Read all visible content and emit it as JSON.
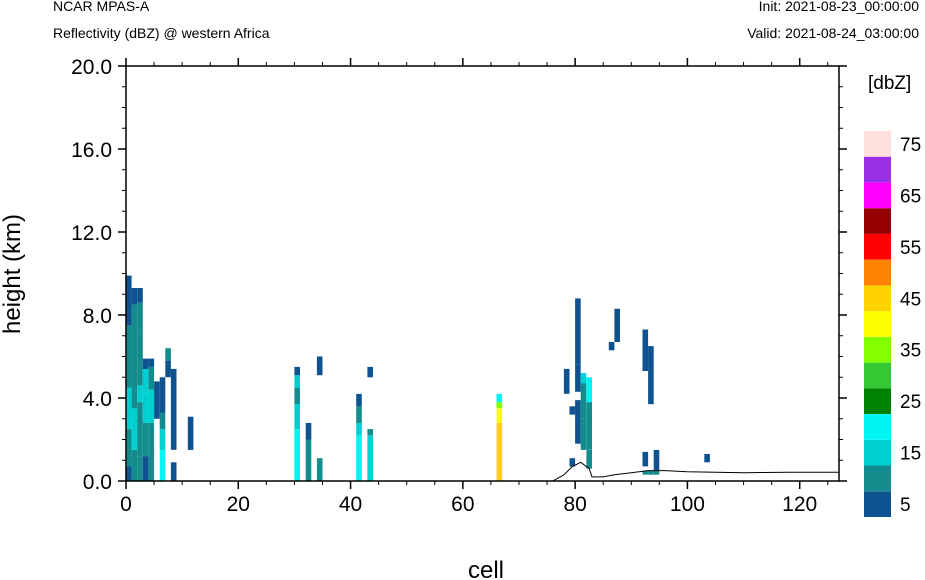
{
  "header": {
    "model": "NCAR MPAS-A",
    "field": "Reflectivity (dBZ) @ western Africa",
    "init": "Init: 2021-08-23_00:00:00",
    "valid": "Valid: 2021-08-24_03:00:00"
  },
  "chart_data": {
    "type": "heatmap",
    "title": "",
    "xlabel": "cell",
    "ylabel": "height (km)",
    "xlim": [
      0,
      127
    ],
    "ylim": [
      0,
      20
    ],
    "x_ticks": [
      "0",
      "20",
      "40",
      "60",
      "80",
      "100",
      "120"
    ],
    "y_ticks": [
      "0.0",
      "4.0",
      "8.0",
      "12.0",
      "16.0",
      "20.0"
    ],
    "grid": false,
    "colorbar": {
      "title": "[dbZ]",
      "labels": [
        "5",
        "15",
        "25",
        "35",
        "45",
        "55",
        "65",
        "75"
      ],
      "bins": [
        {
          "value": 5,
          "color": "#0e5290"
        },
        {
          "value": 10,
          "color": "#128c8c"
        },
        {
          "value": 15,
          "color": "#00cfd2"
        },
        {
          "value": 20,
          "color": "#00f4f4"
        },
        {
          "value": 25,
          "color": "#008200"
        },
        {
          "value": 30,
          "color": "#34c934"
        },
        {
          "value": 35,
          "color": "#84ff00"
        },
        {
          "value": 40,
          "color": "#ffff00"
        },
        {
          "value": 45,
          "color": "#ffd200"
        },
        {
          "value": 50,
          "color": "#ff8200"
        },
        {
          "value": 55,
          "color": "#ff0000"
        },
        {
          "value": 60,
          "color": "#960000"
        },
        {
          "value": 65,
          "color": "#ff00ff"
        },
        {
          "value": 70,
          "color": "#9a30e6"
        },
        {
          "value": 75,
          "color": "#ffe0da"
        }
      ]
    },
    "columns": [
      {
        "x": 0.5,
        "cells": [
          [
            0,
            0.7,
            5
          ],
          [
            0.7,
            2.5,
            10
          ],
          [
            2.5,
            4.5,
            15
          ],
          [
            4.5,
            7.5,
            10
          ],
          [
            7.5,
            9.3,
            5
          ],
          [
            9.3,
            9.9,
            5
          ]
        ]
      },
      {
        "x": 1.5,
        "cells": [
          [
            0,
            1.5,
            10
          ],
          [
            1.5,
            3.5,
            15
          ],
          [
            3.5,
            6.0,
            10
          ],
          [
            6.0,
            8.5,
            10
          ],
          [
            8.5,
            9.3,
            5
          ]
        ]
      },
      {
        "x": 2.5,
        "cells": [
          [
            0,
            1.2,
            10
          ],
          [
            1.2,
            3.8,
            10
          ],
          [
            3.8,
            4.6,
            15
          ],
          [
            4.6,
            7.2,
            10
          ],
          [
            7.2,
            8.6,
            10
          ],
          [
            8.6,
            9.3,
            5
          ]
        ]
      },
      {
        "x": 3.5,
        "cells": [
          [
            0,
            1.2,
            5
          ],
          [
            1.2,
            2.8,
            10
          ],
          [
            2.8,
            4.2,
            15
          ],
          [
            4.2,
            5.4,
            15
          ],
          [
            5.4,
            5.9,
            5
          ]
        ]
      },
      {
        "x": 4.5,
        "cells": [
          [
            0,
            2.8,
            10
          ],
          [
            2.8,
            4.4,
            15
          ],
          [
            4.4,
            5.5,
            10
          ],
          [
            5.5,
            5.9,
            5
          ]
        ]
      },
      {
        "x": 5.5,
        "cells": [
          [
            3.0,
            4.8,
            5
          ]
        ]
      },
      {
        "x": 6.5,
        "cells": [
          [
            0,
            1.5,
            20
          ],
          [
            1.5,
            2.5,
            15
          ],
          [
            2.5,
            3.3,
            10
          ],
          [
            3.3,
            5.0,
            5
          ]
        ]
      },
      {
        "x": 7.5,
        "cells": [
          [
            5.0,
            5.8,
            5
          ],
          [
            5.8,
            6.4,
            10
          ]
        ]
      },
      {
        "x": 8.5,
        "cells": [
          [
            0,
            0.9,
            5
          ],
          [
            1.5,
            5.4,
            5
          ]
        ]
      },
      {
        "x": 11.5,
        "cells": [
          [
            1.5,
            3.1,
            5
          ]
        ]
      },
      {
        "x": 30.5,
        "cells": [
          [
            0,
            2.5,
            20
          ],
          [
            2.5,
            3.7,
            15
          ],
          [
            3.7,
            4.5,
            10
          ],
          [
            4.5,
            5.1,
            15
          ],
          [
            5.1,
            5.5,
            5
          ]
        ]
      },
      {
        "x": 32.5,
        "cells": [
          [
            0,
            2.0,
            10
          ],
          [
            2.0,
            2.8,
            5
          ]
        ]
      },
      {
        "x": 34.5,
        "cells": [
          [
            0,
            1.1,
            10
          ],
          [
            5.1,
            6.0,
            5
          ]
        ]
      },
      {
        "x": 41.5,
        "cells": [
          [
            0,
            2.2,
            20
          ],
          [
            2.2,
            2.8,
            15
          ],
          [
            2.8,
            3.6,
            10
          ],
          [
            3.6,
            4.2,
            5
          ]
        ]
      },
      {
        "x": 43.5,
        "cells": [
          [
            0,
            2.2,
            15
          ],
          [
            2.2,
            2.5,
            10
          ],
          [
            5.0,
            5.5,
            5
          ]
        ]
      },
      {
        "x": 66.5,
        "cells": [
          [
            0,
            2.8,
            45
          ],
          [
            2.8,
            3.5,
            40
          ],
          [
            3.5,
            3.8,
            35
          ],
          [
            3.8,
            4.2,
            20
          ]
        ]
      },
      {
        "x": 78.5,
        "cells": [
          [
            4.2,
            5.4,
            5
          ]
        ]
      },
      {
        "x": 79.5,
        "cells": [
          [
            0.7,
            1.1,
            5
          ],
          [
            3.2,
            3.6,
            5
          ]
        ]
      },
      {
        "x": 80.5,
        "cells": [
          [
            1.8,
            3.9,
            5
          ],
          [
            4.3,
            5.6,
            5
          ],
          [
            5.6,
            8.8,
            5
          ]
        ]
      },
      {
        "x": 81.5,
        "cells": [
          [
            1.5,
            3.0,
            10
          ],
          [
            3.0,
            4.7,
            10
          ],
          [
            4.7,
            5.2,
            15
          ]
        ]
      },
      {
        "x": 82.5,
        "cells": [
          [
            0.6,
            1.5,
            10
          ],
          [
            1.5,
            3.8,
            10
          ],
          [
            3.8,
            5.0,
            20
          ]
        ]
      },
      {
        "x": 86.5,
        "cells": [
          [
            6.3,
            6.7,
            5
          ]
        ]
      },
      {
        "x": 87.5,
        "cells": [
          [
            6.7,
            8.3,
            5
          ]
        ]
      },
      {
        "x": 92.5,
        "cells": [
          [
            5.3,
            7.3,
            5
          ],
          [
            0.3,
            0.5,
            10
          ],
          [
            0.7,
            1.4,
            5
          ]
        ]
      },
      {
        "x": 93.5,
        "cells": [
          [
            3.7,
            6.5,
            5
          ],
          [
            0.3,
            0.5,
            10
          ]
        ]
      },
      {
        "x": 94.5,
        "cells": [
          [
            0.5,
            1.5,
            5
          ],
          [
            0.3,
            0.5,
            10
          ]
        ]
      },
      {
        "x": 103.5,
        "cells": [
          [
            0.9,
            1.3,
            5
          ]
        ]
      }
    ],
    "terrain_km": [
      [
        0,
        0
      ],
      [
        76,
        0
      ],
      [
        78,
        0.3
      ],
      [
        79.5,
        0.7
      ],
      [
        81,
        0.9
      ],
      [
        82.5,
        0.6
      ],
      [
        83,
        0.2
      ],
      [
        85,
        0.2
      ],
      [
        87,
        0.3
      ],
      [
        90,
        0.4
      ],
      [
        93,
        0.5
      ],
      [
        96,
        0.5
      ],
      [
        100,
        0.45
      ],
      [
        110,
        0.4
      ],
      [
        118,
        0.42
      ],
      [
        127,
        0.42
      ]
    ]
  }
}
